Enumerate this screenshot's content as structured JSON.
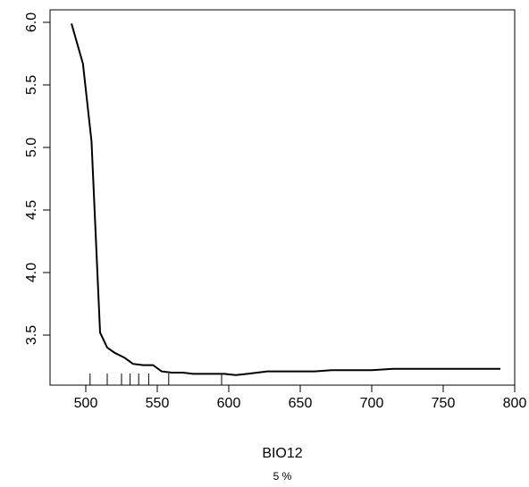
{
  "chart_data": {
    "type": "line",
    "title": "",
    "xlabel": "BIO12",
    "ylabel": "",
    "subtitle": "5 %",
    "xlim": [
      475,
      800
    ],
    "ylim": [
      3.1,
      6.1
    ],
    "x_ticks": [
      500,
      550,
      600,
      650,
      700,
      750,
      800
    ],
    "y_ticks": [
      3.5,
      4.0,
      4.5,
      5.0,
      5.5,
      6.0
    ],
    "y_tick_labels": [
      "3.5",
      "4.0",
      "4.5",
      "5.0",
      "5.5",
      "6.0"
    ],
    "line_color": "#000000",
    "series": [
      {
        "x": [
          490,
          498,
          504,
          510,
          515,
          520,
          527,
          533,
          540,
          547,
          553,
          560,
          568,
          575,
          583,
          590,
          597,
          605,
          613,
          620,
          627,
          640,
          660,
          672,
          700,
          715,
          750,
          790
        ],
        "y": [
          5.99,
          5.67,
          5.05,
          3.52,
          3.4,
          3.36,
          3.32,
          3.27,
          3.26,
          3.26,
          3.21,
          3.2,
          3.2,
          3.19,
          3.19,
          3.19,
          3.19,
          3.18,
          3.19,
          3.2,
          3.21,
          3.21,
          3.21,
          3.22,
          3.22,
          3.23,
          3.23,
          3.23
        ]
      }
    ],
    "rug_x": [
      503,
      515,
      525,
      531,
      537,
      544,
      558,
      595
    ]
  }
}
